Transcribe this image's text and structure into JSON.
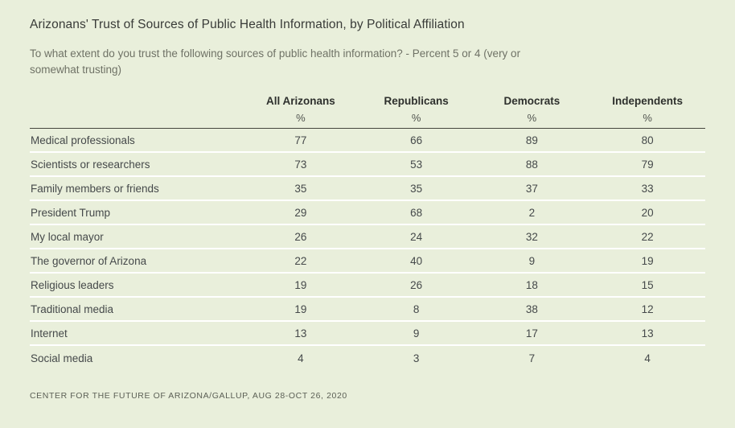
{
  "colors": {
    "background": "#e9efdb",
    "row_separator": "#ffffff",
    "header_rule": "#45453d",
    "title_text": "#393b38",
    "subtitle_text": "#6f7266",
    "footer_text": "#5c6056"
  },
  "chart_data": {
    "type": "table",
    "title": "Arizonans' Trust of Sources of Public Health Information, by Political Affiliation",
    "subtitle": "To what extent do you trust the following sources of public health information? - Percent 5 or 4 (very or somewhat trusting)",
    "unit": "%",
    "columns": [
      "All Arizonans",
      "Republicans",
      "Democrats",
      "Independents"
    ],
    "rows": [
      {
        "label": "Medical professionals",
        "values": [
          77,
          66,
          89,
          80
        ]
      },
      {
        "label": "Scientists or researchers",
        "values": [
          73,
          53,
          88,
          79
        ]
      },
      {
        "label": "Family members or friends",
        "values": [
          35,
          35,
          37,
          33
        ]
      },
      {
        "label": "President Trump",
        "values": [
          29,
          68,
          2,
          20
        ]
      },
      {
        "label": "My local mayor",
        "values": [
          26,
          24,
          32,
          22
        ]
      },
      {
        "label": "The governor of Arizona",
        "values": [
          22,
          40,
          9,
          19
        ]
      },
      {
        "label": "Religious leaders",
        "values": [
          19,
          26,
          18,
          15
        ]
      },
      {
        "label": "Traditional media",
        "values": [
          19,
          8,
          38,
          12
        ]
      },
      {
        "label": "Internet",
        "values": [
          13,
          9,
          17,
          13
        ]
      },
      {
        "label": "Social media",
        "values": [
          4,
          3,
          7,
          4
        ]
      }
    ],
    "source": "CENTER FOR THE FUTURE OF ARIZONA/GALLUP, AUG 28-OCT 26, 2020",
    "layout": {
      "grid": false,
      "legend": "none",
      "value_columns_aligned": "center"
    }
  }
}
